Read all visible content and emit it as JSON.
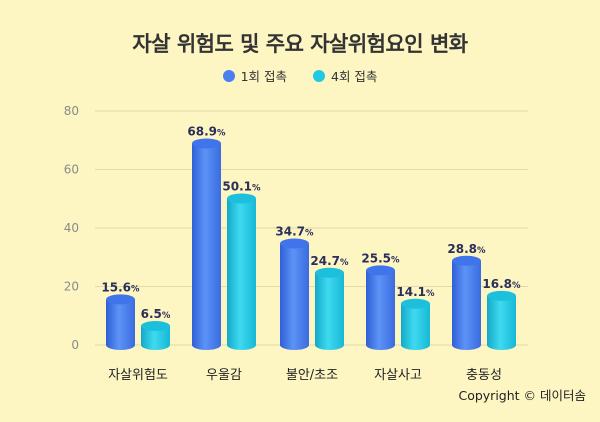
{
  "chart_data": {
    "type": "bar",
    "title": "자살 위험도 및 주요 자살위험요인 변화",
    "categories": [
      "자살위험도",
      "우울감",
      "불안/초조",
      "자살사고",
      "충동성"
    ],
    "series": [
      {
        "name": "1회 접촉",
        "values": [
          15.6,
          68.9,
          34.7,
          25.5,
          28.8
        ],
        "color": "#4a7ff0"
      },
      {
        "name": "4회 접촉",
        "values": [
          6.5,
          50.1,
          24.7,
          14.1,
          16.8
        ],
        "color": "#22c9e3"
      }
    ],
    "value_suffix": "%",
    "yticks": [
      0,
      20,
      40,
      60,
      80
    ],
    "ylim": [
      0,
      80
    ],
    "grid": true,
    "legend_position": "top"
  },
  "footer": {
    "copyright": "Copyright © 데이터솜"
  }
}
